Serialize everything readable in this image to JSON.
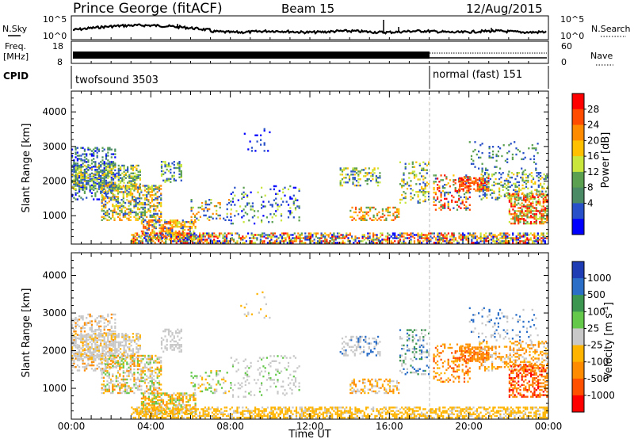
{
  "header": {
    "station": "Prince George (fitACF)",
    "beam": "Beam 15",
    "date": "12/Aug/2015"
  },
  "noise_panel": {
    "left_label": "N.Sky",
    "right_label": "N.Search",
    "left_ticks": [
      "10^5",
      "10^0"
    ],
    "right_ticks": [
      "10^5",
      "10^0"
    ]
  },
  "freq_panel": {
    "left_label_1": "Freq.",
    "left_label_2": "[MHz]",
    "right_label": "Nave",
    "left_ticks": [
      "18",
      "8"
    ],
    "right_ticks": [
      "60",
      "0"
    ]
  },
  "cpid_panel": {
    "label": "CPID",
    "modes": [
      {
        "name": "twofsound 3503",
        "start_hour": 0,
        "end_hour": 18
      },
      {
        "name": "normal (fast) 151",
        "start_hour": 18,
        "end_hour": 24
      }
    ]
  },
  "chart_data": [
    {
      "type": "heatmap",
      "title": "",
      "ylabel": "Slant Range [km]",
      "colorbar_label": "Power [dB]",
      "colorbar_ticks": [
        "28",
        "24",
        "20",
        "16",
        "12",
        "8",
        "4"
      ],
      "colorbar_colors": [
        "#ff0000",
        "#ff4c00",
        "#ff8c00",
        "#ffc000",
        "#c8e63c",
        "#5aa050",
        "#4a8a64",
        "#2850c8",
        "#0000ff"
      ],
      "ylim": [
        180,
        4600
      ],
      "yticks": [
        "4000",
        "3000",
        "2000",
        "1000"
      ],
      "ytick_values": [
        4000,
        3000,
        2000,
        1000
      ]
    },
    {
      "type": "heatmap",
      "title": "",
      "ylabel": "Slant Range [km]",
      "colorbar_label": "Velocity [m s^-1]",
      "colorbar_ticks": [
        "1000",
        "500",
        "100",
        "25",
        "-25",
        "-100",
        "-500",
        "-1000"
      ],
      "colorbar_colors": [
        "#1e3cb4",
        "#2a6ec8",
        "#3c9650",
        "#64c84a",
        "#c8c8c8",
        "#ffb400",
        "#ff8c00",
        "#ff5000",
        "#ff0000"
      ],
      "ylim": [
        180,
        4600
      ],
      "yticks": [
        "4000",
        "3000",
        "2000",
        "1000"
      ],
      "ytick_values": [
        4000,
        3000,
        2000,
        1000
      ]
    }
  ],
  "xaxis": {
    "label": "Time UT",
    "ticks": [
      "00:00",
      "04:00",
      "08:00",
      "12:00",
      "16:00",
      "20:00",
      "00:00"
    ],
    "tick_hours": [
      0,
      4,
      8,
      12,
      16,
      20,
      24
    ]
  }
}
